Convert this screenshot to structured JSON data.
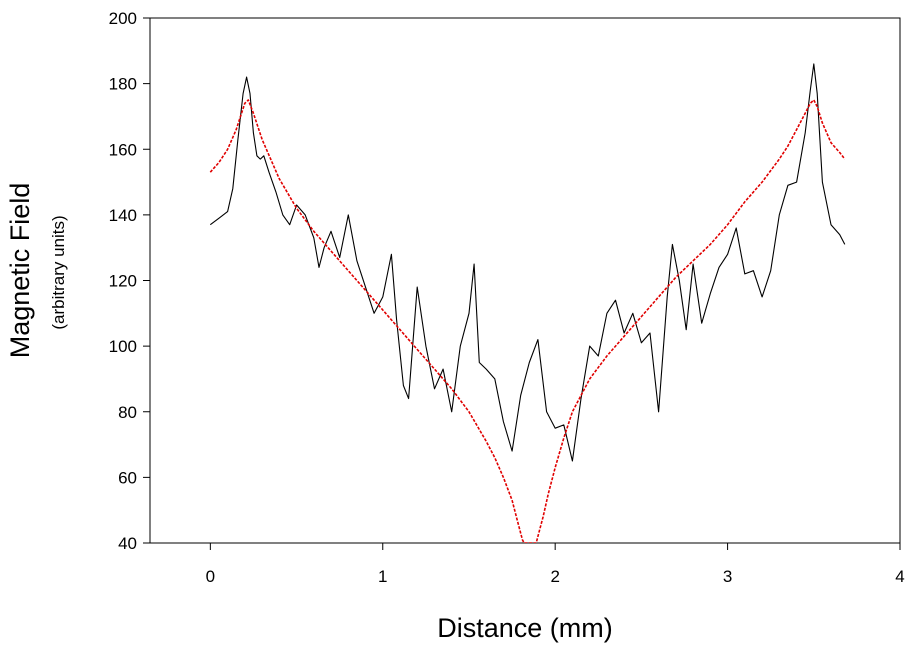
{
  "chart_data": {
    "type": "line",
    "title": "",
    "xlabel": "Distance (mm)",
    "ylabel": "Magnetic Field",
    "ylabel_sub": "(arbitrary units)",
    "xlim": [
      -0.35,
      4.0
    ],
    "ylim": [
      40,
      200
    ],
    "x_ticks": [
      0,
      1,
      2,
      3,
      4
    ],
    "y_ticks": [
      40,
      60,
      80,
      100,
      120,
      140,
      160,
      180,
      200
    ],
    "grid": false,
    "legend": "none",
    "series": [
      {
        "style": "measured",
        "color": "#000000",
        "x": [
          0.0,
          0.05,
          0.1,
          0.13,
          0.16,
          0.19,
          0.21,
          0.23,
          0.25,
          0.27,
          0.29,
          0.31,
          0.34,
          0.38,
          0.42,
          0.46,
          0.5,
          0.55,
          0.6,
          0.63,
          0.66,
          0.7,
          0.75,
          0.8,
          0.85,
          0.9,
          0.95,
          1.0,
          1.05,
          1.08,
          1.12,
          1.15,
          1.2,
          1.25,
          1.3,
          1.35,
          1.4,
          1.45,
          1.5,
          1.53,
          1.56,
          1.6,
          1.65,
          1.7,
          1.75,
          1.8,
          1.85,
          1.9,
          1.95,
          2.0,
          2.05,
          2.1,
          2.15,
          2.2,
          2.25,
          2.3,
          2.35,
          2.4,
          2.45,
          2.5,
          2.55,
          2.6,
          2.65,
          2.68,
          2.72,
          2.76,
          2.8,
          2.85,
          2.9,
          2.95,
          3.0,
          3.05,
          3.1,
          3.15,
          3.2,
          3.25,
          3.3,
          3.35,
          3.4,
          3.45,
          3.48,
          3.5,
          3.52,
          3.55,
          3.6,
          3.65,
          3.68
        ],
        "y": [
          137,
          139,
          141,
          148,
          163,
          177,
          182,
          177,
          165,
          158,
          157,
          158,
          153,
          147,
          140,
          137,
          143,
          140,
          133,
          124,
          130,
          135,
          127,
          140,
          126,
          118,
          110,
          115,
          128,
          108,
          88,
          84,
          118,
          100,
          87,
          93,
          80,
          100,
          110,
          125,
          95,
          93,
          90,
          77,
          68,
          85,
          95,
          102,
          80,
          75,
          76,
          65,
          84,
          100,
          97,
          110,
          114,
          104,
          110,
          101,
          104,
          80,
          115,
          131,
          120,
          105,
          125,
          107,
          116,
          124,
          128,
          136,
          122,
          123,
          115,
          123,
          140,
          149,
          150,
          165,
          178,
          186,
          177,
          150,
          137,
          134,
          131
        ]
      },
      {
        "style": "fit",
        "color": "#e00000",
        "x": [
          0.0,
          0.05,
          0.1,
          0.15,
          0.2,
          0.22,
          0.25,
          0.3,
          0.4,
          0.5,
          0.6,
          0.7,
          0.8,
          0.9,
          1.0,
          1.1,
          1.2,
          1.3,
          1.4,
          1.5,
          1.6,
          1.65,
          1.7,
          1.75,
          1.78,
          1.81,
          1.82,
          1.89,
          1.9,
          1.93,
          1.96,
          2.0,
          2.05,
          2.1,
          2.2,
          2.3,
          2.4,
          2.5,
          2.6,
          2.7,
          2.8,
          2.9,
          3.0,
          3.1,
          3.2,
          3.3,
          3.35,
          3.4,
          3.45,
          3.48,
          3.5,
          3.52,
          3.55,
          3.6,
          3.65,
          3.68
        ],
        "y": [
          153,
          156,
          160,
          166,
          174,
          175,
          171,
          163,
          151,
          142,
          135,
          129,
          123,
          117,
          111,
          105,
          99,
          93,
          87,
          80,
          71,
          66,
          60,
          53,
          47,
          41,
          40,
          40,
          42,
          48,
          55,
          63,
          72,
          80,
          90,
          97,
          103,
          109,
          115,
          121,
          126,
          131,
          137,
          144,
          150,
          157,
          161,
          166,
          171,
          174,
          175,
          173,
          168,
          162,
          159,
          157
        ]
      }
    ]
  }
}
